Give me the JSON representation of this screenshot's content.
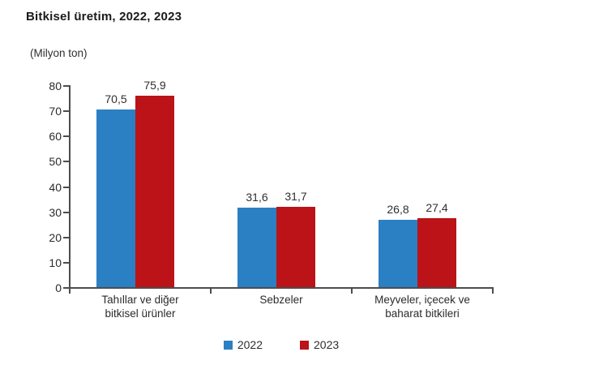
{
  "title": "Bitkisel üretim, 2022, 2023",
  "unit_label": "(Milyon ton)",
  "chart_data": {
    "type": "bar",
    "title": "Bitkisel üretim, 2022, 2023",
    "ylabel": "(Milyon ton)",
    "xlabel": "",
    "categories": [
      "Tahıllar ve diğer\nbitkisel ürünler",
      "Sebzeler",
      "Meyveler, içecek ve\nbaharat bitkileri"
    ],
    "series": [
      {
        "name": "2022",
        "color": "#2B7FC3",
        "values": [
          70.5,
          31.6,
          26.8
        ]
      },
      {
        "name": "2023",
        "color": "#BB1317",
        "values": [
          75.9,
          31.7,
          27.4
        ]
      }
    ],
    "ylim": [
      0,
      80
    ],
    "yticks": [
      0,
      10,
      20,
      30,
      40,
      50,
      60,
      70,
      80
    ],
    "grid": false,
    "decimal_separator": ",",
    "legend_position": "bottom"
  },
  "legend": {
    "items": [
      {
        "label": "2022",
        "color": "#2B7FC3"
      },
      {
        "label": "2023",
        "color": "#BB1317"
      }
    ]
  }
}
